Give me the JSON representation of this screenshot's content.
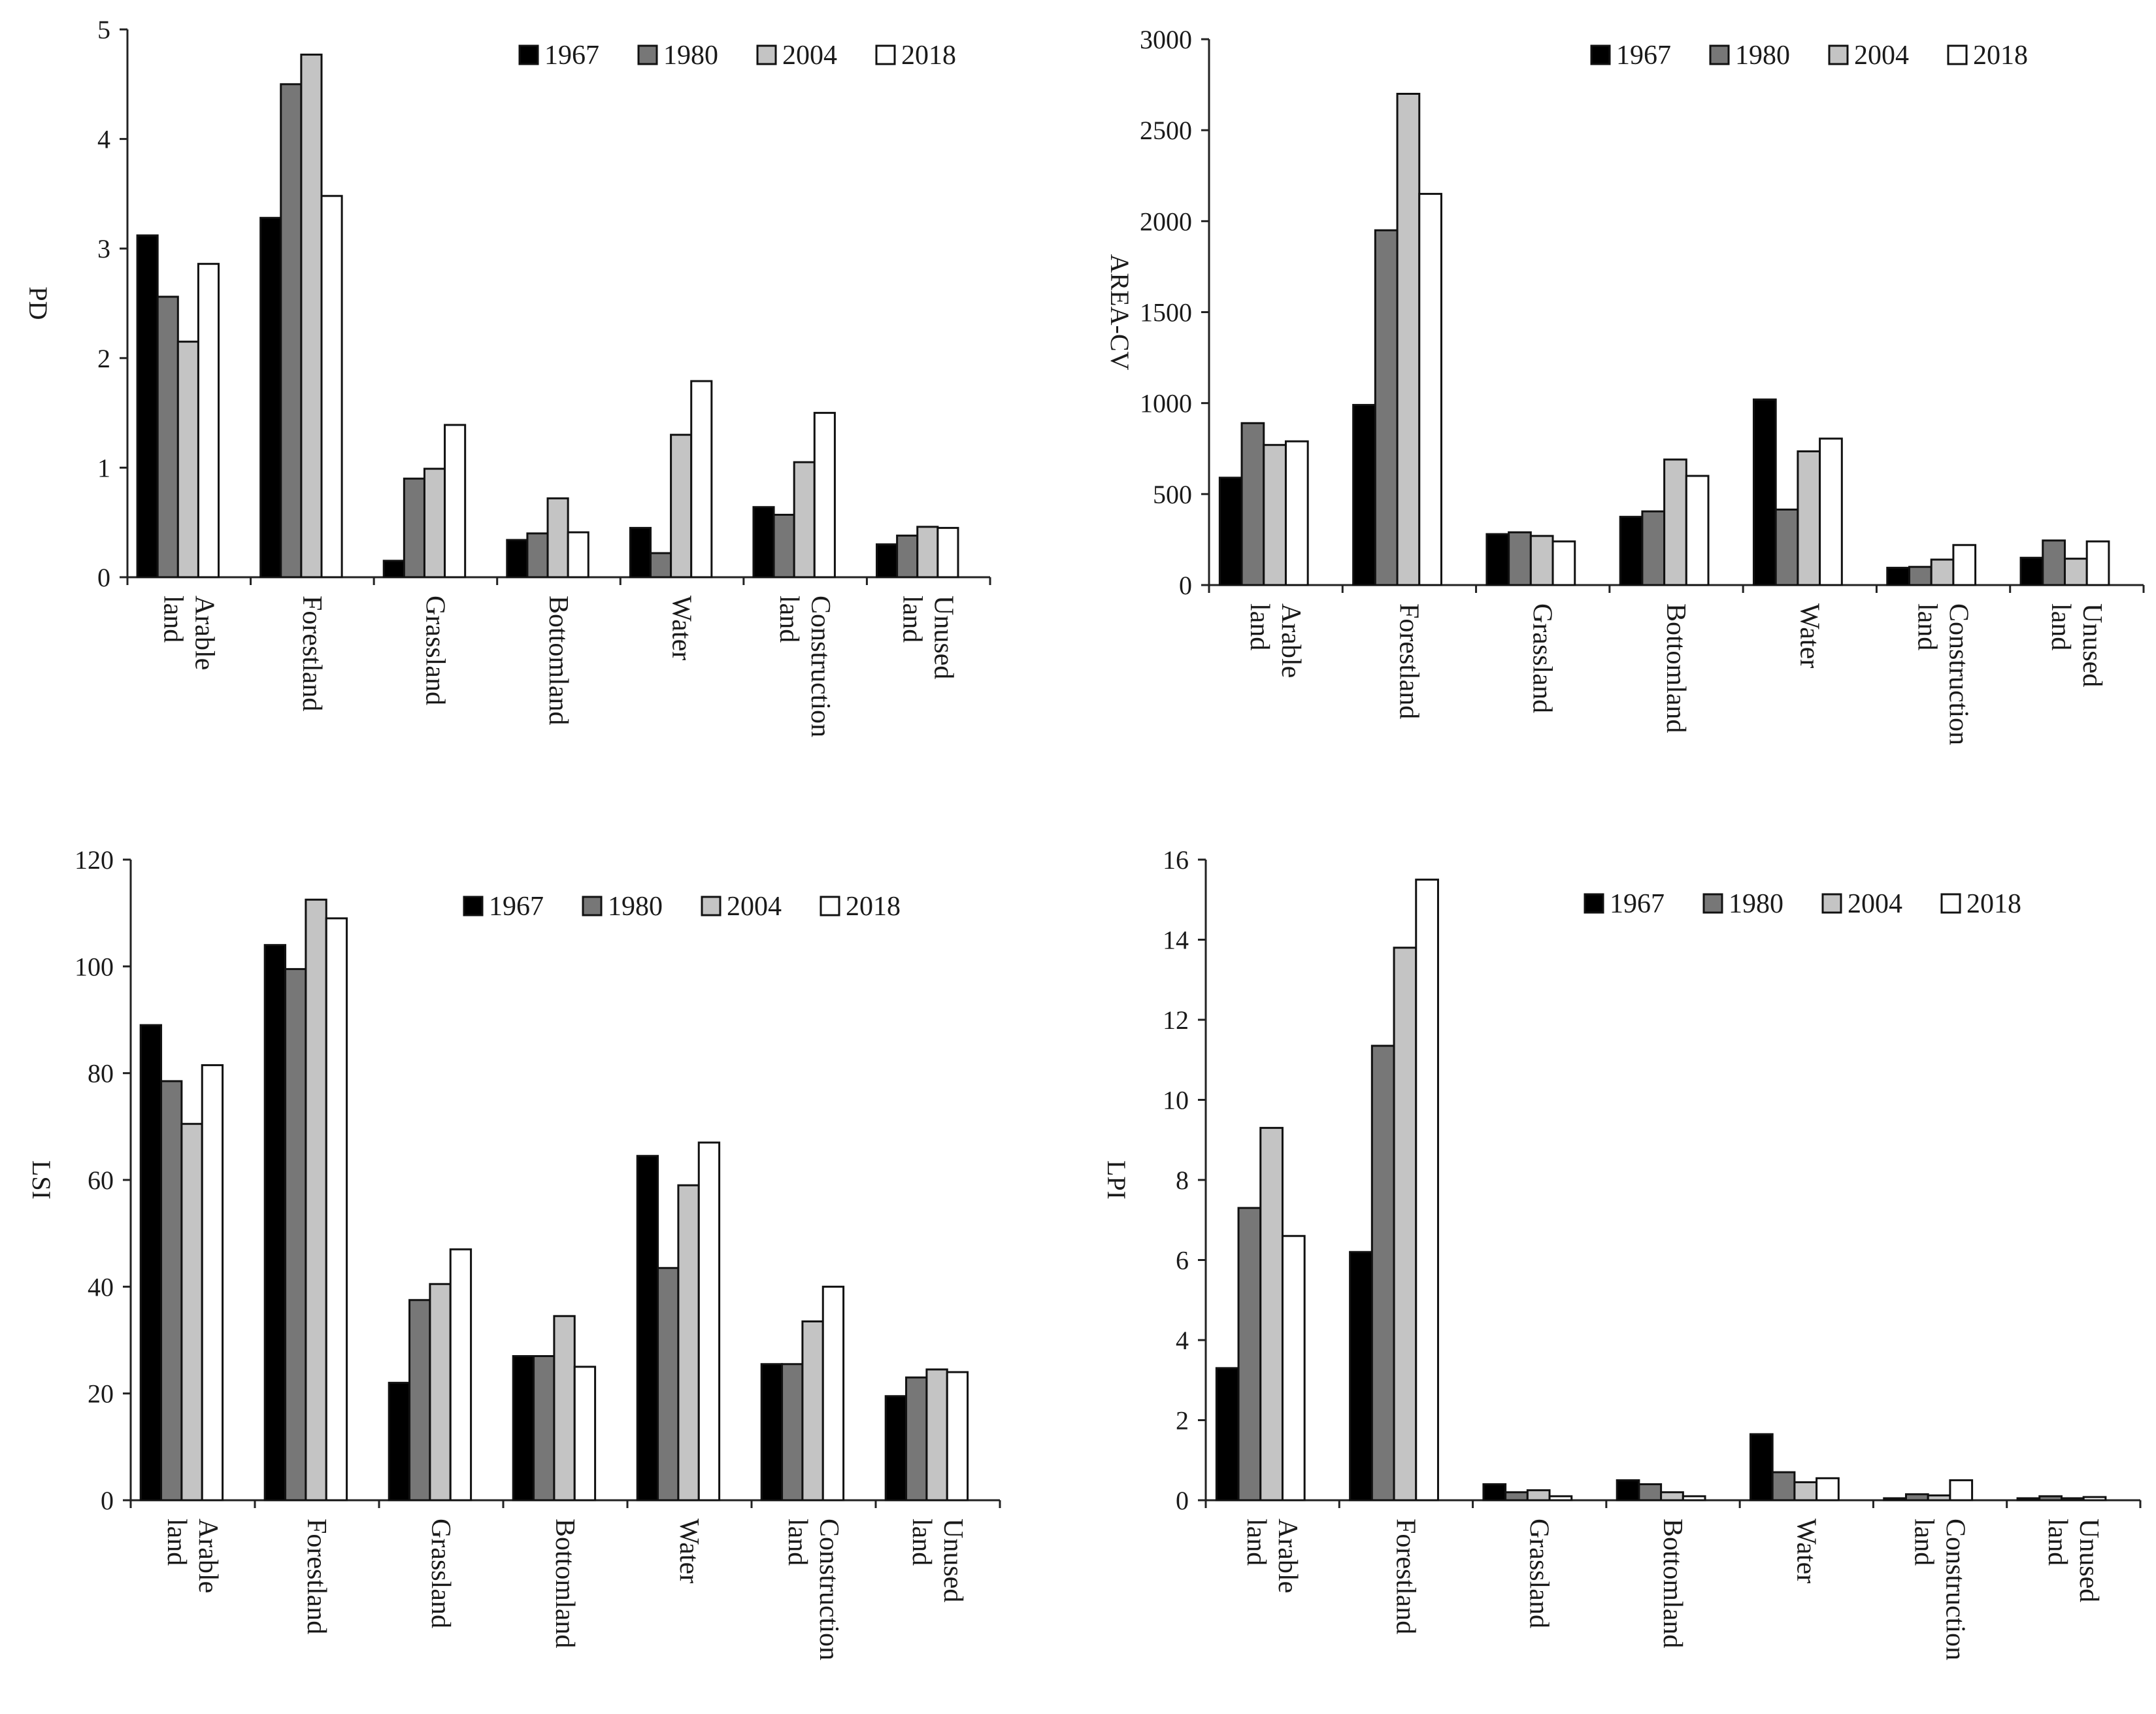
{
  "figure": {
    "description_colors": {
      "1967": "#000000",
      "1980": "#777777",
      "2004": "#c4c4c4",
      "2018": "#ffffff"
    }
  },
  "chart_data": [
    {
      "type": "bar",
      "ylabel": "PD",
      "ylim": [
        0,
        5
      ],
      "yticks": [
        "0",
        "1",
        "2",
        "3",
        "4",
        "5"
      ],
      "categories": [
        [
          "Arable",
          "land"
        ],
        [
          "Forestland"
        ],
        [
          "Grassland"
        ],
        [
          "Bottomland"
        ],
        [
          "Water"
        ],
        [
          "Construction",
          "land"
        ],
        [
          "Unused",
          "land"
        ]
      ],
      "legend": [
        "1967",
        "1980",
        "2004",
        "2018"
      ],
      "series": [
        {
          "name": "1967",
          "values": [
            3.12,
            3.28,
            0.15,
            0.34,
            0.45,
            0.64,
            0.3
          ]
        },
        {
          "name": "1980",
          "values": [
            2.56,
            4.5,
            0.9,
            0.4,
            0.22,
            0.57,
            0.38
          ]
        },
        {
          "name": "2004",
          "values": [
            2.15,
            4.77,
            0.99,
            0.72,
            1.3,
            1.05,
            0.46
          ]
        },
        {
          "name": "2018",
          "values": [
            2.86,
            3.48,
            1.39,
            0.41,
            1.79,
            1.5,
            0.45
          ]
        }
      ]
    },
    {
      "type": "bar",
      "ylabel": "AREA-CV",
      "ylim": [
        0,
        3000
      ],
      "yticks": [
        "0",
        "500",
        "1000",
        "1500",
        "2000",
        "2500",
        "3000"
      ],
      "categories": [
        [
          "Arable",
          "land"
        ],
        [
          "Forestland"
        ],
        [
          "Grassland"
        ],
        [
          "Bottomland"
        ],
        [
          "Water"
        ],
        [
          "Construction",
          "land"
        ],
        [
          "Unused",
          "land"
        ]
      ],
      "legend": [
        "1967",
        "1980",
        "2004",
        "2018"
      ],
      "series": [
        {
          "name": "1967",
          "values": [
            590,
            990,
            280,
            375,
            1020,
            95,
            150
          ]
        },
        {
          "name": "1980",
          "values": [
            890,
            1950,
            290,
            405,
            415,
            100,
            245
          ]
        },
        {
          "name": "2004",
          "values": [
            770,
            2700,
            270,
            690,
            735,
            140,
            145
          ]
        },
        {
          "name": "2018",
          "values": [
            790,
            2150,
            240,
            600,
            805,
            220,
            240
          ]
        }
      ]
    },
    {
      "type": "bar",
      "ylabel": "LSI",
      "ylim": [
        0,
        120
      ],
      "yticks": [
        "0",
        "20",
        "40",
        "60",
        "80",
        "100",
        "120"
      ],
      "categories": [
        [
          "Arable",
          "land"
        ],
        [
          "Forestland"
        ],
        [
          "Grassland"
        ],
        [
          "Bottomland"
        ],
        [
          "Water"
        ],
        [
          "Construction",
          "land"
        ],
        [
          "Unused",
          "land"
        ]
      ],
      "legend": [
        "1967",
        "1980",
        "2004",
        "2018"
      ],
      "series": [
        {
          "name": "1967",
          "values": [
            89,
            104,
            22,
            27,
            64.5,
            25.5,
            19.5
          ]
        },
        {
          "name": "1980",
          "values": [
            78.5,
            99.5,
            37.5,
            27,
            43.5,
            25.5,
            23
          ]
        },
        {
          "name": "2004",
          "values": [
            70.5,
            112.5,
            40.5,
            34.5,
            59,
            33.5,
            24.5
          ]
        },
        {
          "name": "2018",
          "values": [
            81.5,
            109,
            47,
            25,
            67,
            40,
            24
          ]
        }
      ]
    },
    {
      "type": "bar",
      "ylabel": "LPI",
      "ylim": [
        0,
        16
      ],
      "yticks": [
        "0",
        "2",
        "4",
        "6",
        "8",
        "10",
        "12",
        "14",
        "16"
      ],
      "categories": [
        [
          "Arable",
          "land"
        ],
        [
          "Forestland"
        ],
        [
          "Grassland"
        ],
        [
          "Bottomland"
        ],
        [
          "Water"
        ],
        [
          "Construction",
          "land"
        ],
        [
          "Unused",
          "land"
        ]
      ],
      "legend": [
        "1967",
        "1980",
        "2004",
        "2018"
      ],
      "series": [
        {
          "name": "1967",
          "values": [
            3.3,
            6.2,
            0.4,
            0.5,
            1.65,
            0.05,
            0.05
          ]
        },
        {
          "name": "1980",
          "values": [
            7.3,
            11.35,
            0.2,
            0.4,
            0.7,
            0.15,
            0.1
          ]
        },
        {
          "name": "2004",
          "values": [
            9.3,
            13.8,
            0.25,
            0.2,
            0.45,
            0.12,
            0.05
          ]
        },
        {
          "name": "2018",
          "values": [
            6.6,
            15.5,
            0.1,
            0.1,
            0.55,
            0.5,
            0.08
          ]
        }
      ]
    }
  ]
}
